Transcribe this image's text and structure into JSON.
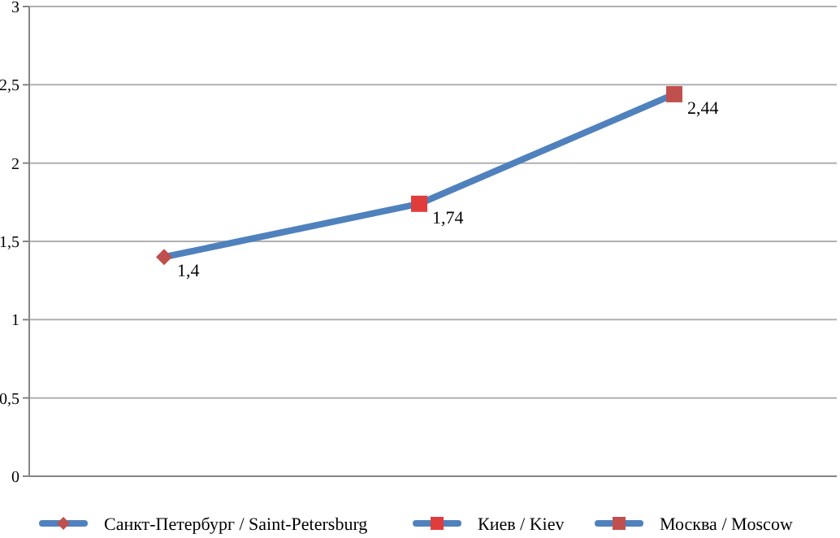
{
  "chart_data": {
    "type": "line",
    "categories": [
      null,
      null,
      null
    ],
    "series": [
      {
        "color": "#4f81bd",
        "values": [
          1.4,
          1.74,
          2.44
        ]
      },
      {
        "type": "scatter",
        "name": "Санкт-Петербург / Saint-Petersburg",
        "color": "#c0504d",
        "marker": "diamond",
        "values": [
          1.4,
          null,
          null
        ],
        "value_labels": [
          "1,4",
          null,
          null
        ]
      },
      {
        "type": "scatter",
        "name": "Киев / Kiev",
        "color": "#e03c3c",
        "marker": "square",
        "values": [
          null,
          1.74,
          null
        ],
        "value_labels": [
          null,
          "1,74",
          null
        ]
      },
      {
        "type": "scatter",
        "name": "Москва / Moscow",
        "color": "#c0504d",
        "marker": "square",
        "values": [
          null,
          null,
          2.44
        ],
        "value_labels": [
          null,
          null,
          "2,44"
        ]
      }
    ],
    "ylim": [
      0,
      3
    ],
    "yticks": [
      0,
      {
        "value": 0.5,
        "label": "0,5"
      },
      1,
      {
        "value": 1.5,
        "label": "1,5"
      },
      2,
      {
        "value": 2.5,
        "label": "2,5"
      },
      3
    ],
    "grid": "y",
    "legend": "bottom",
    "tick_labels": "y"
  }
}
